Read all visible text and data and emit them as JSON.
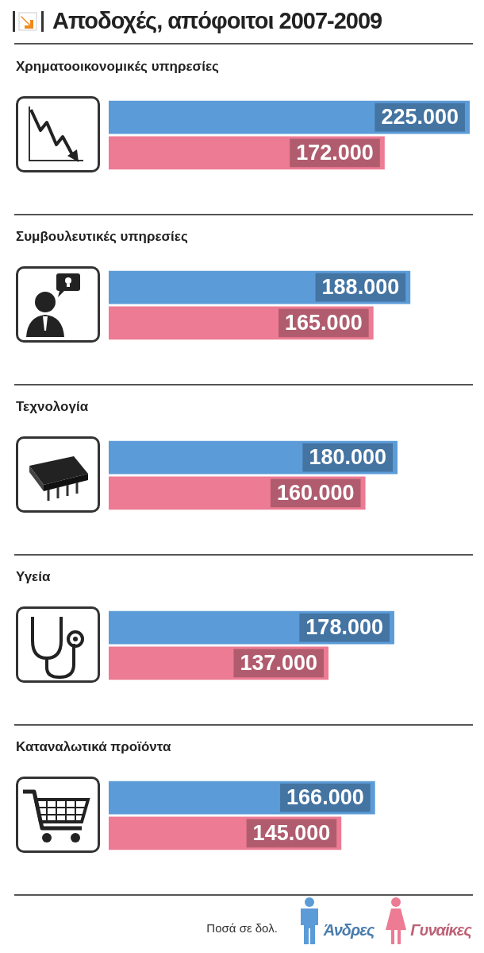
{
  "chart_data": {
    "type": "bar",
    "orientation": "horizontal",
    "title": "Αποδοχές, απόφοιτοι 2007-2009",
    "categories": [
      "Χρηματοοικονομικές υπηρεσίες",
      "Συμβουλευτικές υπηρεσίες",
      "Τεχνολογία",
      "Υγεία",
      "Καταναλωτικά προϊόντα"
    ],
    "series": [
      {
        "name": "Άνδρες",
        "color": "#5b9bd8",
        "values": [
          225000,
          188000,
          180000,
          178000,
          166000
        ],
        "value_labels": [
          "225.000",
          "188.000",
          "180.000",
          "178.000",
          "166.000"
        ]
      },
      {
        "name": "Γυναίκες",
        "color": "#ec7b93",
        "values": [
          172000,
          165000,
          160000,
          137000,
          145000
        ],
        "value_labels": [
          "172.000",
          "165.000",
          "160.000",
          "137.000",
          "145.000"
        ]
      }
    ],
    "legend": "bottom right",
    "annotations": [
      "Ποσά σε δολ."
    ]
  }
}
